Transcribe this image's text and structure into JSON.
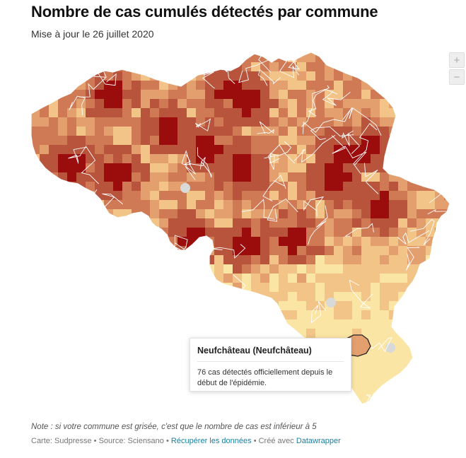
{
  "header": {
    "title": "Nombre de cas cumulés détectés par commune",
    "subtitle": "Mise à jour le 26 juillet 2020"
  },
  "zoom": {
    "in_label": "+",
    "out_label": "−"
  },
  "legend_colors": {
    "lightest": "#fbe5a4",
    "light": "#f2c487",
    "medium": "#e3a06e",
    "dark": "#d07a55",
    "darker": "#b8533c",
    "darkest": "#9b0c0c",
    "no_data_gray": "#d9d9d9"
  },
  "tooltip": {
    "title": "Neufchâteau (Neufchâteau)",
    "body": "76 cas détectés officiellement depuis le début de l'épidémie."
  },
  "footer": {
    "note": "Note : si votre commune est grisée, c'est que le nombre de cas est inférieur à 5",
    "map_credit": "Carte: Sudpresse",
    "sep1": " • ",
    "source": "Source: Sciensano",
    "sep2": " • ",
    "get_data": "Récupérer les données",
    "sep3": " • ",
    "created_with": "Créé avec ",
    "datawrapper": "Datawrapper"
  }
}
